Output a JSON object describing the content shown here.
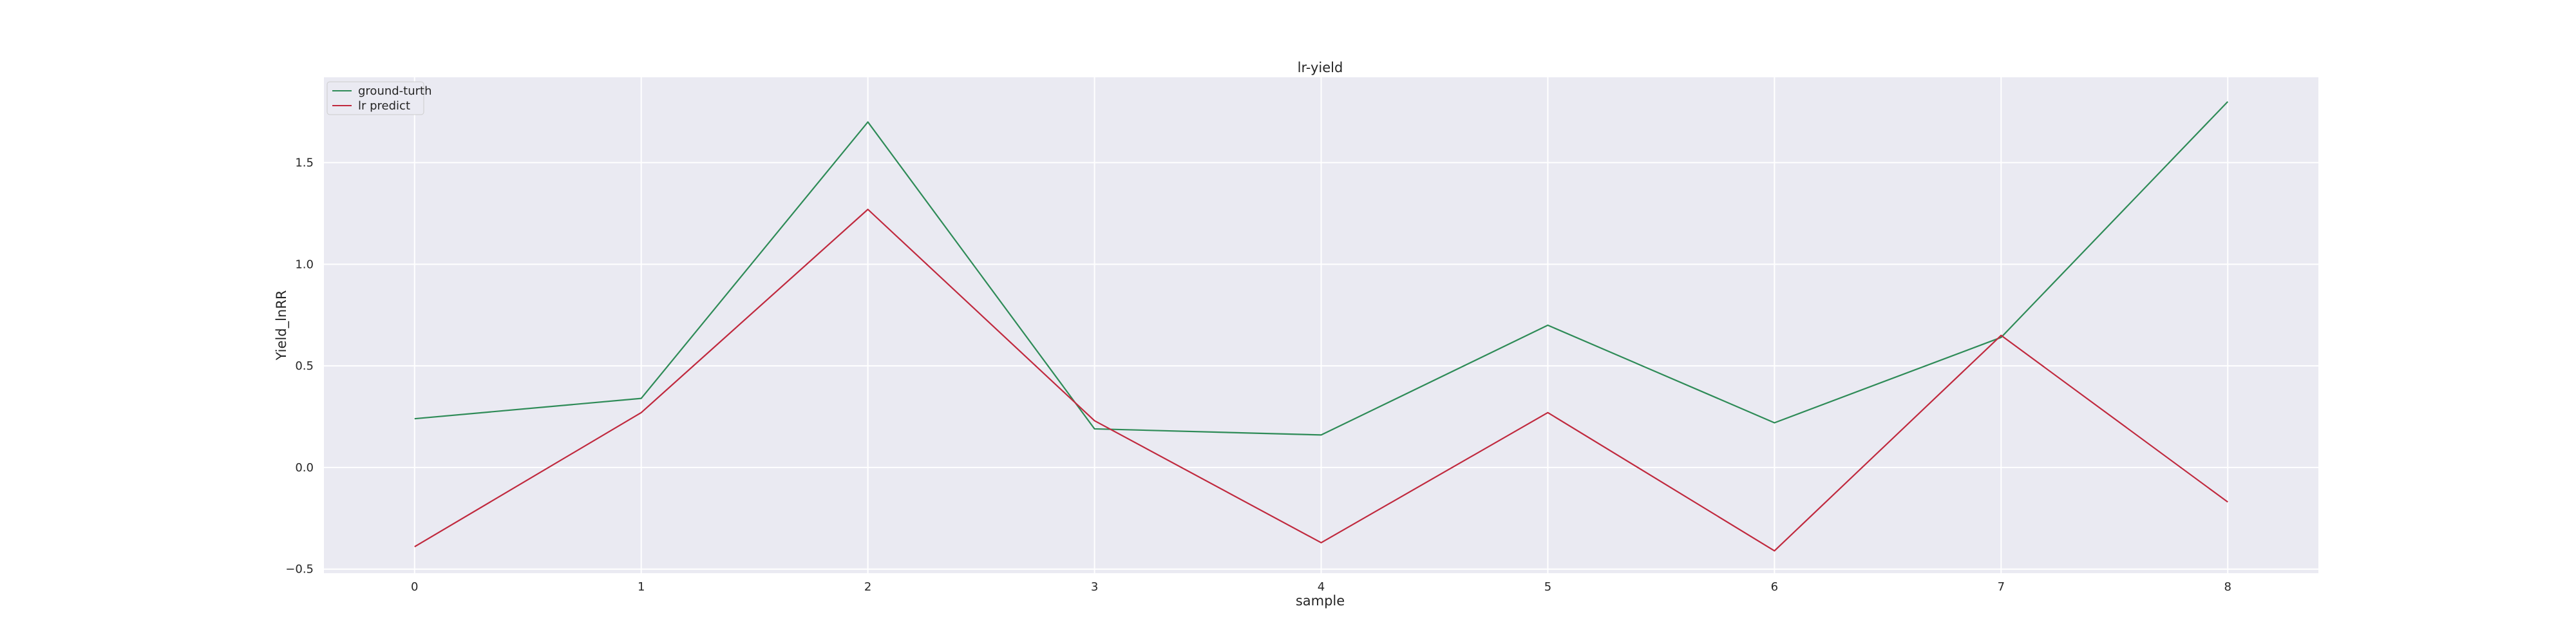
{
  "chart_data": {
    "type": "line",
    "title": "lr-yield",
    "xlabel": "sample",
    "ylabel": "Yield_lnRR",
    "x": [
      0,
      1,
      2,
      3,
      4,
      5,
      6,
      7,
      8
    ],
    "xlim": [
      -0.4,
      8.4
    ],
    "ylim": [
      -0.52,
      1.92
    ],
    "xticks": [
      "0",
      "1",
      "2",
      "3",
      "4",
      "5",
      "6",
      "7",
      "8"
    ],
    "yticks": [
      -0.5,
      0.0,
      0.5,
      1.0,
      1.5
    ],
    "ytick_labels": [
      "−0.5",
      "0.0",
      "0.5",
      "1.0",
      "1.5"
    ],
    "grid": true,
    "legend_position": "top-left",
    "series": [
      {
        "name": "ground-turth",
        "color": "#2e8b57",
        "values": [
          0.24,
          0.34,
          1.7,
          0.19,
          0.16,
          0.7,
          0.22,
          0.64,
          1.8
        ]
      },
      {
        "name": "lr predict",
        "color": "#c0293e",
        "values": [
          -0.39,
          0.27,
          1.27,
          0.23,
          -0.37,
          0.27,
          -0.41,
          0.65,
          -0.17
        ]
      }
    ],
    "background_color": "#eaeaf2",
    "grid_color": "#ffffff"
  }
}
